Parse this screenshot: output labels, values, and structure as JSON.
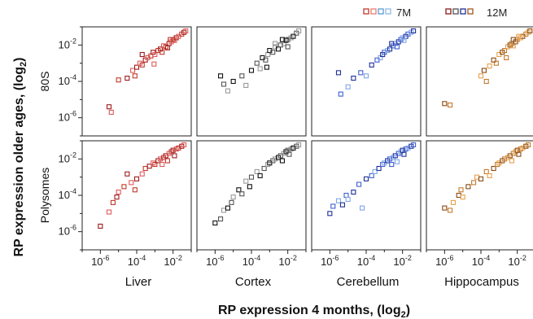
{
  "figure": {
    "y_axis_title": "RP expression older ages, (log",
    "y_axis_title_sub": "2",
    "y_axis_title_close": ")",
    "x_axis_title": "RP expression 4 months, (log",
    "x_axis_title_sub": "2",
    "x_axis_title_close": ")",
    "row_labels": [
      "80S",
      "Polysomes"
    ],
    "column_labels": [
      "Liver",
      "Cortex",
      "Cerebellum",
      "Hippocampus"
    ],
    "legend": [
      {
        "label": "7M",
        "colors": [
          "#c0392b",
          "#e67e73",
          "#5b9bd5",
          "#8fbbe6"
        ]
      },
      {
        "label": "12M",
        "colors": [
          "#8b1a1a",
          "#555555",
          "#1f2f9a",
          "#a0581c"
        ]
      }
    ],
    "tick_base": "10",
    "tick_exponents": [
      "-6",
      "-4",
      "-2"
    ]
  },
  "chart_data": {
    "type": "scatter",
    "x_scale": "log10",
    "y_scale": "log10",
    "xlim": [
      1e-07,
      0.1
    ],
    "ylim": [
      1e-07,
      0.1
    ],
    "panels": [
      {
        "row": "80S",
        "column": "Liver",
        "colors": [
          "#9e1b1b",
          "#e05a5a",
          "#c0392b"
        ],
        "points": [
          [
            3e-06,
            4e-06
          ],
          [
            4e-06,
            2e-06
          ],
          [
            1e-05,
            0.00012
          ],
          [
            3e-05,
            0.00015
          ],
          [
            6e-05,
            0.0004
          ],
          [
            8e-05,
            0.0002
          ],
          [
            0.0001,
            0.0006
          ],
          [
            0.00015,
            0.001
          ],
          [
            0.0002,
            0.0008
          ],
          [
            0.0003,
            0.0015
          ],
          [
            0.0004,
            0.002
          ],
          [
            0.0006,
            0.0025
          ],
          [
            0.0008,
            0.004
          ],
          [
            0.001,
            0.003
          ],
          [
            0.0015,
            0.005
          ],
          [
            0.002,
            0.006
          ],
          [
            0.003,
            0.009
          ],
          [
            0.004,
            0.008
          ],
          [
            0.006,
            0.012
          ],
          [
            0.008,
            0.015
          ],
          [
            0.01,
            0.02
          ],
          [
            0.015,
            0.025
          ],
          [
            0.02,
            0.03
          ],
          [
            0.03,
            0.04
          ],
          [
            0.04,
            0.05
          ],
          [
            0.05,
            0.06
          ],
          [
            0.0025,
            0.004
          ],
          [
            0.005,
            0.007
          ],
          [
            0.012,
            0.018
          ],
          [
            0.007,
            0.02
          ],
          [
            0.0002,
            0.003
          ],
          [
            0.0009,
            0.0009
          ]
        ]
      },
      {
        "row": "80S",
        "column": "Cortex",
        "colors": [
          "#111111",
          "#555555",
          "#999999"
        ],
        "points": [
          [
            2e-06,
            0.0002
          ],
          [
            3e-06,
            7e-05
          ],
          [
            5e-06,
            3e-05
          ],
          [
            1e-05,
            0.0001
          ],
          [
            3e-05,
            0.0002
          ],
          [
            5e-05,
            6e-05
          ],
          [
            0.0001,
            0.0004
          ],
          [
            0.0002,
            0.001
          ],
          [
            0.0003,
            0.0005
          ],
          [
            0.0004,
            0.002
          ],
          [
            0.0006,
            0.0015
          ],
          [
            0.0008,
            0.003
          ],
          [
            0.001,
            0.005
          ],
          [
            0.0015,
            0.004
          ],
          [
            0.002,
            0.008
          ],
          [
            0.003,
            0.006
          ],
          [
            0.004,
            0.01
          ],
          [
            0.006,
            0.012
          ],
          [
            0.008,
            0.018
          ],
          [
            0.01,
            0.02
          ],
          [
            0.015,
            0.025
          ],
          [
            0.02,
            0.03
          ],
          [
            0.03,
            0.045
          ],
          [
            0.04,
            0.06
          ],
          [
            0.005,
            0.02
          ],
          [
            0.01,
            0.008
          ],
          [
            0.002,
            0.012
          ],
          [
            0.0007,
            0.0006
          ]
        ]
      },
      {
        "row": "80S",
        "column": "Cerebellum",
        "colors": [
          "#1f2f9a",
          "#3f5fd0",
          "#7fa6e6"
        ],
        "points": [
          [
            3e-06,
            0.0003
          ],
          [
            4e-06,
            2e-05
          ],
          [
            1e-05,
            5e-05
          ],
          [
            2e-05,
            0.00015
          ],
          [
            5e-05,
            0.0003
          ],
          [
            0.0001,
            0.0002
          ],
          [
            0.0002,
            0.0008
          ],
          [
            0.0004,
            0.0015
          ],
          [
            0.0006,
            0.002
          ],
          [
            0.0008,
            0.003
          ],
          [
            0.001,
            0.004
          ],
          [
            0.0015,
            0.005
          ],
          [
            0.002,
            0.006
          ],
          [
            0.003,
            0.009
          ],
          [
            0.004,
            0.012
          ],
          [
            0.006,
            0.015
          ],
          [
            0.008,
            0.02
          ],
          [
            0.01,
            0.025
          ],
          [
            0.015,
            0.03
          ],
          [
            0.02,
            0.04
          ],
          [
            0.03,
            0.05
          ],
          [
            0.04,
            0.06
          ],
          [
            0.005,
            0.008
          ],
          [
            0.012,
            0.018
          ],
          [
            0.0025,
            0.012
          ]
        ]
      },
      {
        "row": "80S",
        "column": "Hippocampus",
        "colors": [
          "#8a4a12",
          "#c47a2c",
          "#e6a04a"
        ],
        "points": [
          [
            1e-06,
            6e-06
          ],
          [
            2e-06,
            5e-06
          ],
          [
            0.0001,
            0.0002
          ],
          [
            0.00015,
            0.0004
          ],
          [
            0.0002,
            0.0001
          ],
          [
            0.0003,
            0.0007
          ],
          [
            0.0005,
            0.0015
          ],
          [
            0.0007,
            0.001
          ],
          [
            0.001,
            0.003
          ],
          [
            0.0015,
            0.004
          ],
          [
            0.002,
            0.005
          ],
          [
            0.003,
            0.008
          ],
          [
            0.004,
            0.01
          ],
          [
            0.005,
            0.012
          ],
          [
            0.006,
            0.009
          ],
          [
            0.008,
            0.015
          ],
          [
            0.01,
            0.02
          ],
          [
            0.015,
            0.025
          ],
          [
            0.02,
            0.03
          ],
          [
            0.03,
            0.04
          ],
          [
            0.04,
            0.05
          ],
          [
            0.05,
            0.06
          ],
          [
            0.0025,
            0.002
          ],
          [
            0.012,
            0.03
          ],
          [
            0.006,
            0.02
          ]
        ]
      },
      {
        "row": "Polysomes",
        "column": "Liver",
        "colors": [
          "#9e1b1b",
          "#e05a5a",
          "#c0392b"
        ],
        "points": [
          [
            1e-06,
            2e-06
          ],
          [
            3e-06,
            1.2e-05
          ],
          [
            5e-06,
            4e-05
          ],
          [
            8e-06,
            8e-05
          ],
          [
            1e-05,
            0.00015
          ],
          [
            2e-05,
            0.0003
          ],
          [
            3e-05,
            0.0015
          ],
          [
            5e-05,
            0.0005
          ],
          [
            8e-05,
            0.0002
          ],
          [
            0.0001,
            0.0008
          ],
          [
            0.0002,
            0.0015
          ],
          [
            0.0003,
            0.003
          ],
          [
            0.0005,
            0.004
          ],
          [
            0.0008,
            0.006
          ],
          [
            0.001,
            0.005
          ],
          [
            0.0015,
            0.008
          ],
          [
            0.002,
            0.01
          ],
          [
            0.003,
            0.012
          ],
          [
            0.004,
            0.015
          ],
          [
            0.006,
            0.02
          ],
          [
            0.008,
            0.025
          ],
          [
            0.01,
            0.03
          ],
          [
            0.015,
            0.035
          ],
          [
            0.02,
            0.04
          ],
          [
            0.03,
            0.05
          ],
          [
            0.04,
            0.06
          ],
          [
            0.005,
            0.008
          ],
          [
            0.012,
            0.015
          ],
          [
            0.0025,
            0.005
          ]
        ]
      },
      {
        "row": "Polysomes",
        "column": "Cortex",
        "colors": [
          "#111111",
          "#555555",
          "#999999"
        ],
        "points": [
          [
            1e-06,
            3e-06
          ],
          [
            2e-06,
            5e-06
          ],
          [
            3e-06,
            1.5e-05
          ],
          [
            5e-06,
            2e-05
          ],
          [
            8e-06,
            4e-05
          ],
          [
            1e-05,
            8e-05
          ],
          [
            2e-05,
            0.0002
          ],
          [
            3e-05,
            0.00012
          ],
          [
            5e-05,
            0.0006
          ],
          [
            8e-05,
            0.0003
          ],
          [
            0.0001,
            0.001
          ],
          [
            0.0002,
            0.002
          ],
          [
            0.0003,
            0.0012
          ],
          [
            0.0005,
            0.003
          ],
          [
            0.0008,
            0.005
          ],
          [
            0.001,
            0.006
          ],
          [
            0.0015,
            0.008
          ],
          [
            0.002,
            0.01
          ],
          [
            0.003,
            0.012
          ],
          [
            0.004,
            0.015
          ],
          [
            0.006,
            0.02
          ],
          [
            0.008,
            0.025
          ],
          [
            0.01,
            0.03
          ],
          [
            0.015,
            0.035
          ],
          [
            0.02,
            0.04
          ],
          [
            0.03,
            0.05
          ],
          [
            0.04,
            0.06
          ],
          [
            0.005,
            0.008
          ],
          [
            0.012,
            0.018
          ]
        ]
      },
      {
        "row": "Polysomes",
        "column": "Cerebellum",
        "colors": [
          "#1f2f9a",
          "#3f5fd0",
          "#7fa6e6"
        ],
        "points": [
          [
            1e-06,
            1e-05
          ],
          [
            1.5e-06,
            2.5e-05
          ],
          [
            3e-06,
            5e-05
          ],
          [
            5e-06,
            3e-05
          ],
          [
            8e-06,
            0.0001
          ],
          [
            1e-05,
            6e-05
          ],
          [
            2e-05,
            0.00015
          ],
          [
            4e-05,
            0.0004
          ],
          [
            6e-05,
            2e-05
          ],
          [
            0.0001,
            0.0008
          ],
          [
            0.0002,
            0.0012
          ],
          [
            0.0003,
            0.002
          ],
          [
            0.0005,
            0.003
          ],
          [
            0.0008,
            0.005
          ],
          [
            0.001,
            0.006
          ],
          [
            0.0015,
            0.008
          ],
          [
            0.002,
            0.01
          ],
          [
            0.003,
            0.012
          ],
          [
            0.004,
            0.015
          ],
          [
            0.006,
            0.02
          ],
          [
            0.008,
            0.025
          ],
          [
            0.01,
            0.03
          ],
          [
            0.015,
            0.035
          ],
          [
            0.02,
            0.04
          ],
          [
            0.03,
            0.05
          ],
          [
            0.04,
            0.06
          ],
          [
            0.005,
            0.007
          ],
          [
            0.012,
            0.018
          ],
          [
            0.0025,
            0.005
          ]
        ]
      },
      {
        "row": "Polysomes",
        "column": "Hippocampus",
        "colors": [
          "#8a4a12",
          "#c47a2c",
          "#e6a04a"
        ],
        "points": [
          [
            1e-06,
            2e-05
          ],
          [
            2e-06,
            1.5e-05
          ],
          [
            3e-06,
            4e-05
          ],
          [
            6e-06,
            0.0001
          ],
          [
            8e-06,
            0.0002
          ],
          [
            1e-05,
            8e-05
          ],
          [
            2e-05,
            0.0003
          ],
          [
            4e-05,
            0.0005
          ],
          [
            6e-05,
            0.001
          ],
          [
            0.0001,
            0.0008
          ],
          [
            0.0002,
            0.002
          ],
          [
            0.0003,
            0.0012
          ],
          [
            0.0005,
            0.003
          ],
          [
            0.0008,
            0.005
          ],
          [
            0.001,
            0.006
          ],
          [
            0.0015,
            0.008
          ],
          [
            0.002,
            0.01
          ],
          [
            0.003,
            0.012
          ],
          [
            0.004,
            0.015
          ],
          [
            0.006,
            0.02
          ],
          [
            0.008,
            0.025
          ],
          [
            0.01,
            0.03
          ],
          [
            0.015,
            0.035
          ],
          [
            0.02,
            0.04
          ],
          [
            0.03,
            0.05
          ],
          [
            0.04,
            0.06
          ],
          [
            0.005,
            0.008
          ],
          [
            0.012,
            0.018
          ]
        ]
      }
    ]
  }
}
